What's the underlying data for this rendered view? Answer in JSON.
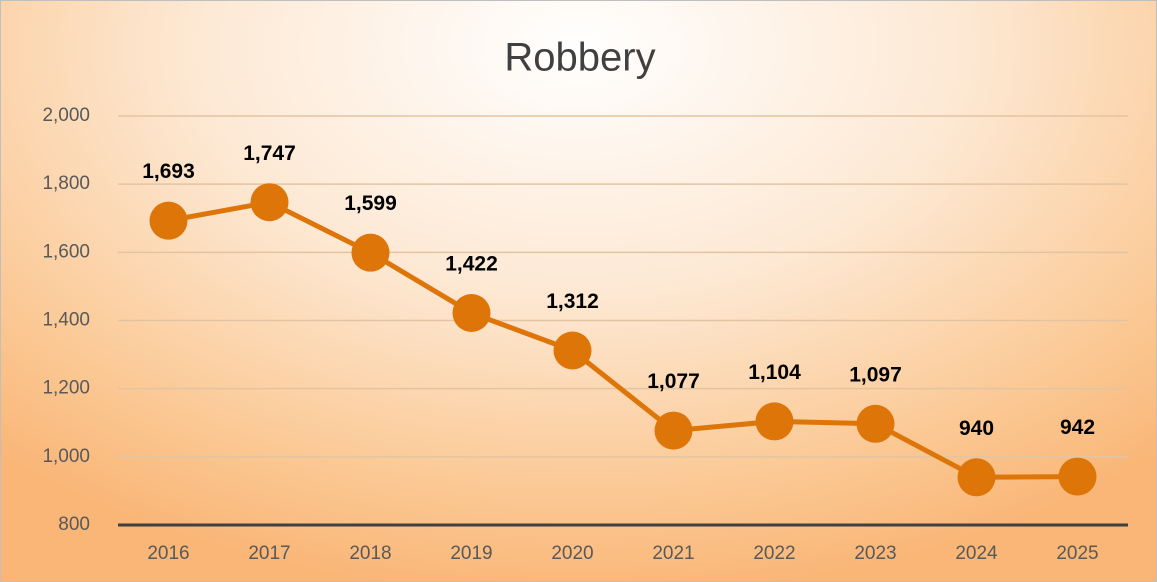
{
  "chart_data": {
    "type": "line",
    "title": "Robbery",
    "categories": [
      "2016",
      "2017",
      "2018",
      "2019",
      "2020",
      "2021",
      "2022",
      "2023",
      "2024",
      "2025"
    ],
    "series": [
      {
        "name": "Robbery",
        "color": "#dd7508",
        "values": [
          1693,
          1747,
          1599,
          1422,
          1312,
          1077,
          1104,
          1097,
          940,
          942
        ],
        "value_labels": [
          "1,693",
          "1,747",
          "1,599",
          "1,422",
          "1,312",
          "1,077",
          "1,104",
          "1,097",
          "940",
          "942"
        ]
      }
    ],
    "ylim": [
      800,
      2000
    ],
    "yticks": [
      800,
      {
        "value": 1000,
        "label": "1,000"
      },
      {
        "value": 1200,
        "label": "1,200"
      },
      {
        "value": 1400,
        "label": "1,400"
      },
      {
        "value": 1600,
        "label": "1,600"
      },
      {
        "value": 1800,
        "label": "1,800"
      },
      {
        "value": 2000,
        "label": "2,000"
      }
    ],
    "grid": true
  }
}
